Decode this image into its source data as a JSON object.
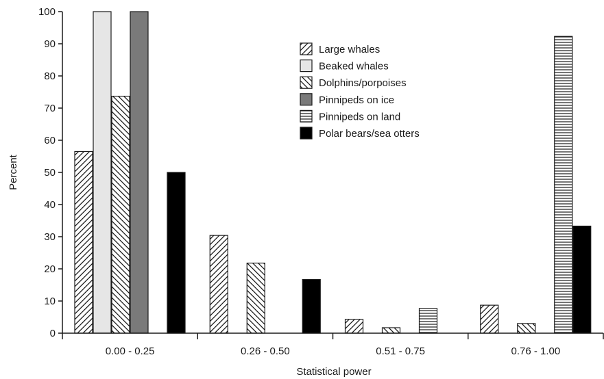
{
  "chart_data": {
    "type": "bar",
    "xlabel": "Statistical power",
    "ylabel": "Percent",
    "ylim": [
      0,
      100
    ],
    "yticks": [
      0,
      10,
      20,
      30,
      40,
      50,
      60,
      70,
      80,
      90,
      100
    ],
    "categories": [
      "0.00 - 0.25",
      "0.26 - 0.50",
      "0.51 - 0.75",
      "0.76 - 1.00"
    ],
    "legend_position": "top-right",
    "series": [
      {
        "name": "Large whales",
        "pattern": "diagonal-up",
        "values": [
          56.5,
          30.4,
          4.3,
          8.7
        ]
      },
      {
        "name": "Beaked whales",
        "pattern": "solid-light-gray",
        "values": [
          100,
          0,
          0,
          0
        ]
      },
      {
        "name": "Dolphins/porpoises",
        "pattern": "diagonal-down",
        "values": [
          73.7,
          21.8,
          1.7,
          3.0
        ]
      },
      {
        "name": "Pinnipeds on ice",
        "pattern": "solid-dark-gray",
        "values": [
          100,
          0,
          0,
          0
        ]
      },
      {
        "name": "Pinnipeds on land",
        "pattern": "horizontal-lines",
        "values": [
          0,
          0,
          7.7,
          92.3
        ]
      },
      {
        "name": "Polar bears/sea otters",
        "pattern": "solid-black",
        "values": [
          50,
          16.7,
          0,
          33.3
        ]
      }
    ]
  }
}
